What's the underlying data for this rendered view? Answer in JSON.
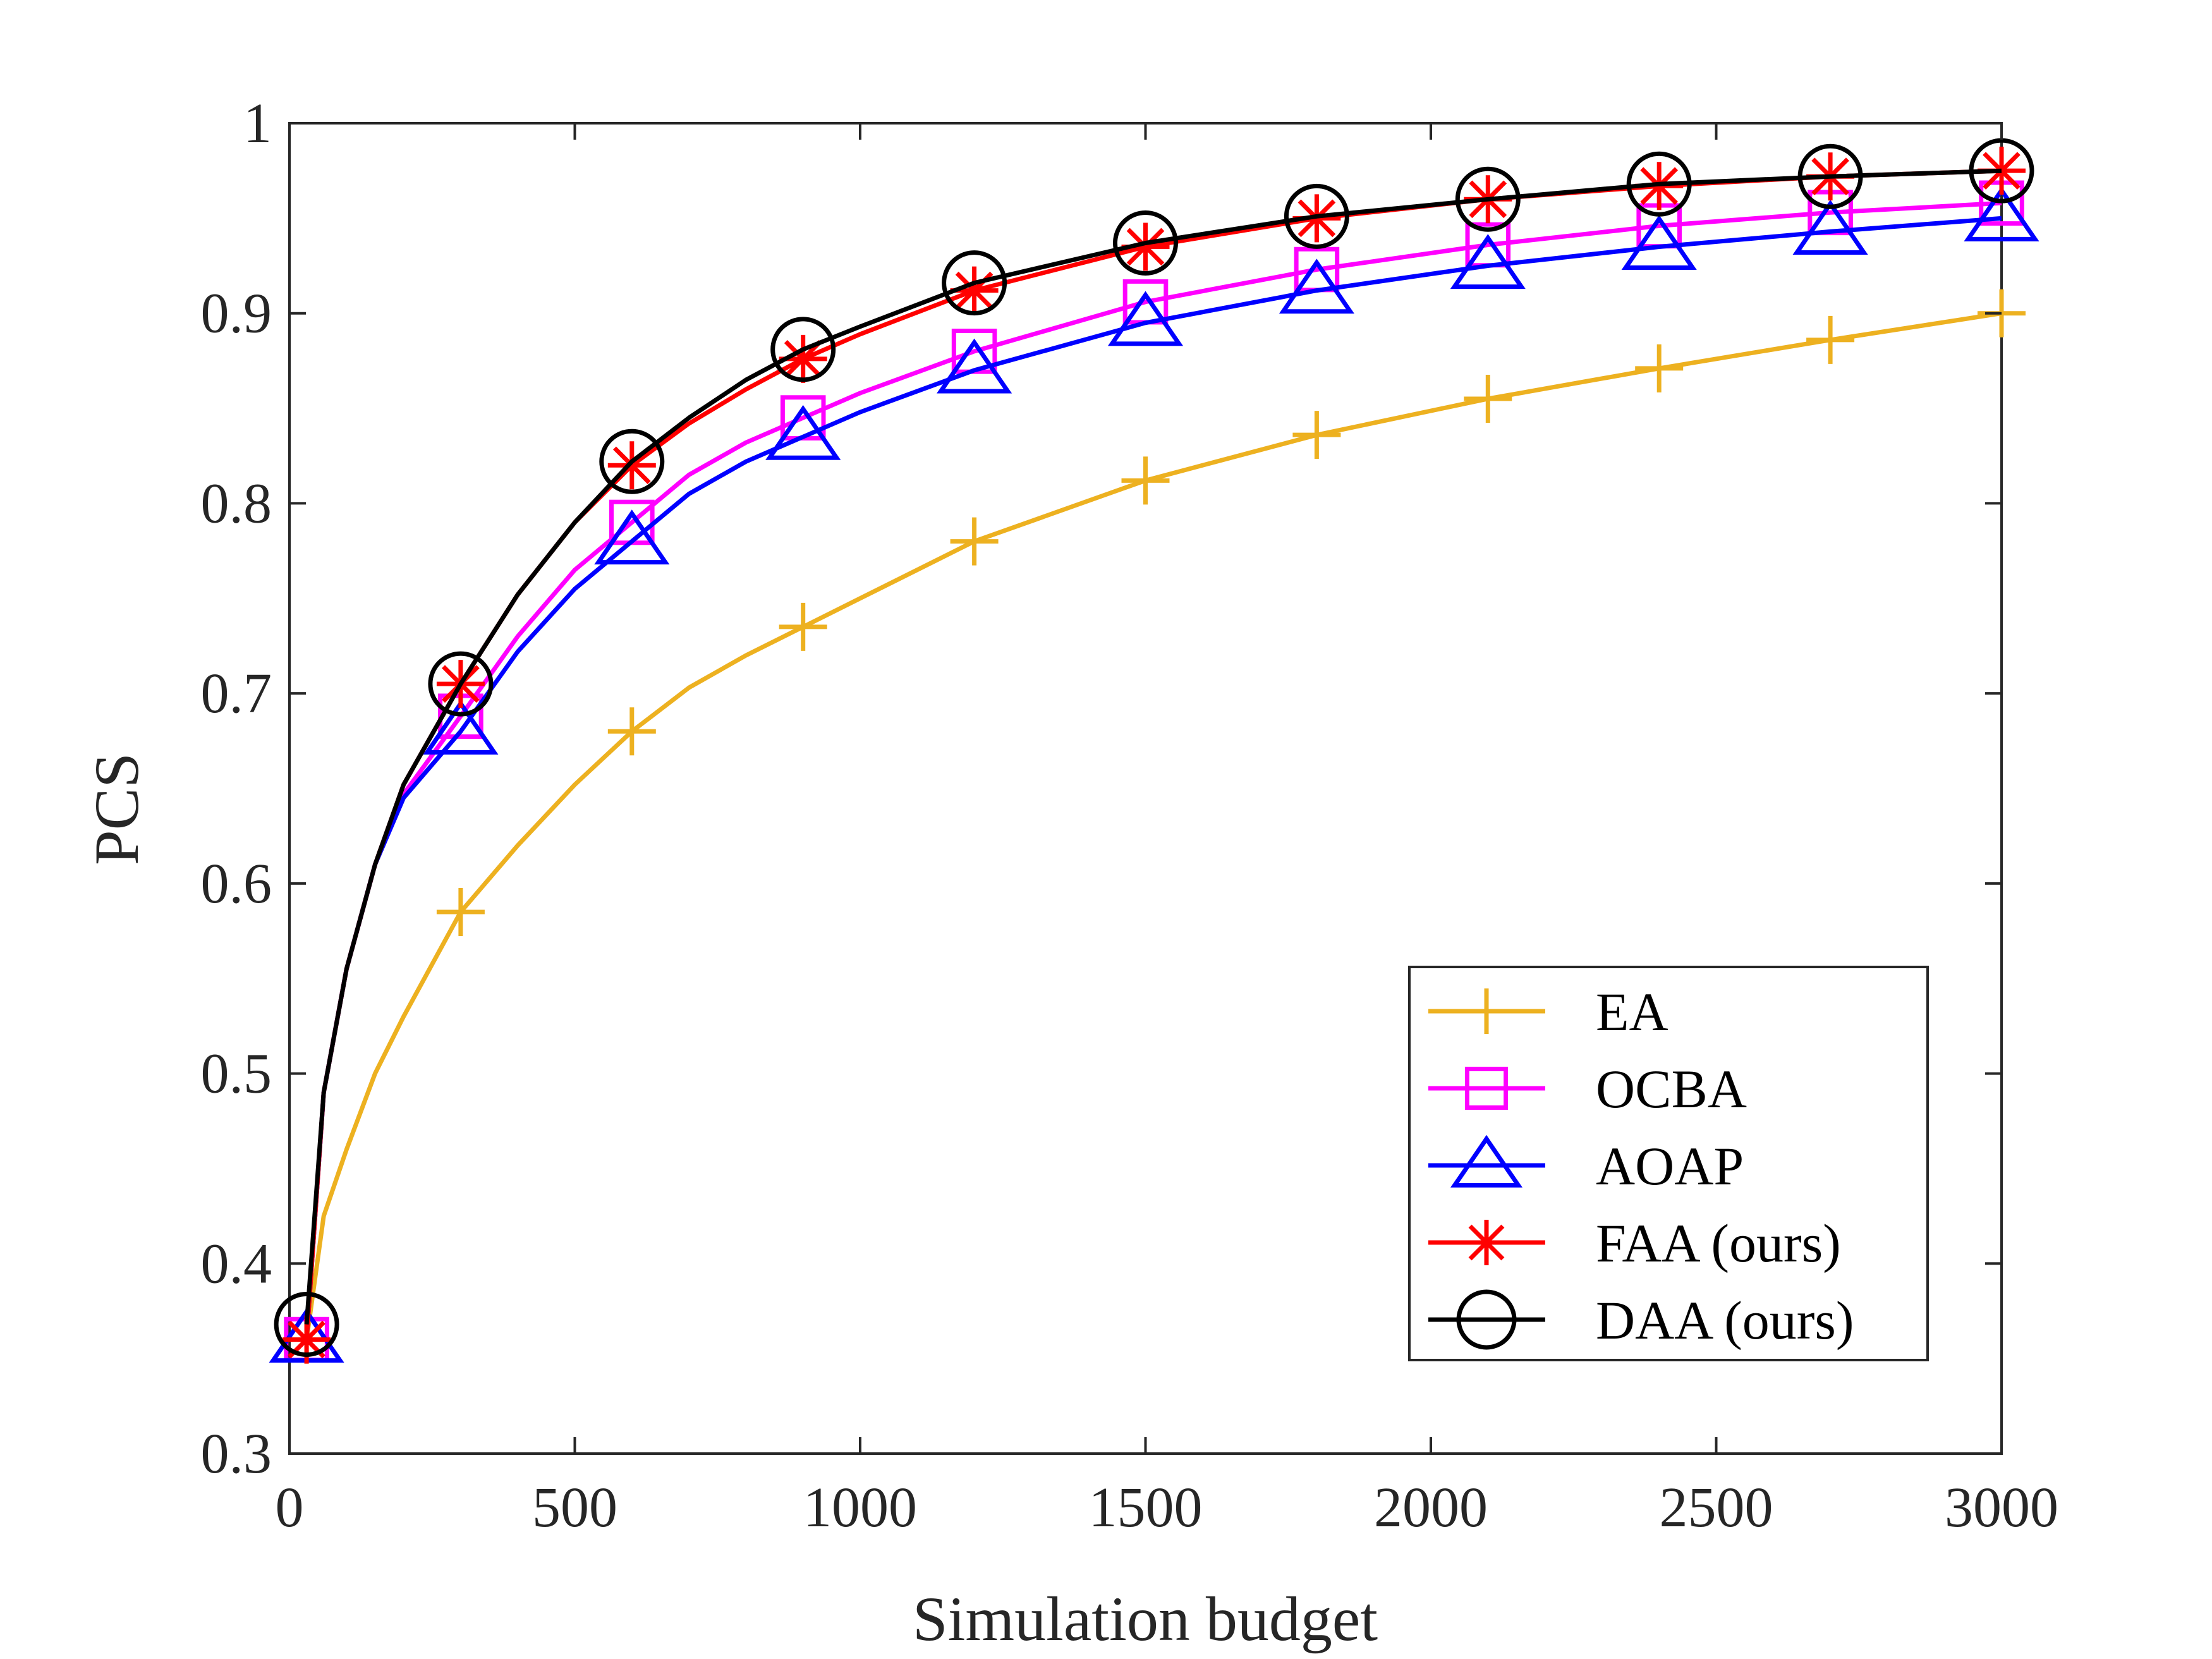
{
  "chart_data": {
    "type": "line",
    "title": "",
    "xlabel": "Simulation budget",
    "ylabel": "PCS",
    "xlim": [
      0,
      3000
    ],
    "ylim": [
      0.3,
      1
    ],
    "xticks": [
      0,
      500,
      1000,
      1500,
      2000,
      2500,
      3000
    ],
    "xtick_labels": [
      "0",
      "500",
      "1000",
      "1500",
      "2000",
      "2500",
      "3000"
    ],
    "yticks": [
      0.3,
      0.4,
      0.5,
      0.6,
      0.7,
      0.8,
      0.9,
      1
    ],
    "ytick_labels": [
      "0.3",
      "0.4",
      "0.5",
      "0.6",
      "0.7",
      "0.8",
      "0.9",
      "1"
    ],
    "grid": false,
    "legend_position": "bottom-right",
    "series": [
      {
        "name": "EA",
        "color": "#EDB120",
        "marker": "plus",
        "x": [
          30,
          60,
          100,
          150,
          200,
          300,
          400,
          500,
          600,
          700,
          800,
          900,
          1000,
          1200,
          1500,
          1800,
          2100,
          2400,
          2700,
          3000
        ],
        "y": [
          0.36,
          0.425,
          0.46,
          0.5,
          0.53,
          0.585,
          0.62,
          0.652,
          0.68,
          0.703,
          0.72,
          0.735,
          0.75,
          0.78,
          0.812,
          0.836,
          0.855,
          0.871,
          0.886,
          0.9
        ],
        "marker_x": [
          30,
          300,
          600,
          900,
          1200,
          1500,
          1800,
          2100,
          2400,
          2700,
          3000
        ],
        "marker_y": [
          0.36,
          0.585,
          0.68,
          0.735,
          0.78,
          0.812,
          0.836,
          0.855,
          0.871,
          0.886,
          0.9
        ]
      },
      {
        "name": "OCBA",
        "color": "#FF00FF",
        "marker": "square",
        "x": [
          30,
          60,
          100,
          150,
          200,
          300,
          400,
          500,
          600,
          700,
          800,
          900,
          1000,
          1200,
          1500,
          1800,
          2100,
          2400,
          2700,
          3000
        ],
        "y": [
          0.36,
          0.49,
          0.555,
          0.61,
          0.647,
          0.688,
          0.73,
          0.765,
          0.79,
          0.815,
          0.832,
          0.845,
          0.858,
          0.88,
          0.906,
          0.923,
          0.936,
          0.946,
          0.953,
          0.958
        ],
        "marker_x": [
          30,
          300,
          600,
          900,
          1200,
          1500,
          1800,
          2100,
          2400,
          2700,
          3000
        ],
        "marker_y": [
          0.36,
          0.688,
          0.79,
          0.845,
          0.88,
          0.906,
          0.923,
          0.936,
          0.946,
          0.953,
          0.958
        ]
      },
      {
        "name": "AOAP",
        "color": "#0000FF",
        "marker": "triangle",
        "x": [
          30,
          60,
          100,
          150,
          200,
          300,
          400,
          500,
          600,
          700,
          800,
          900,
          1000,
          1200,
          1500,
          1800,
          2100,
          2400,
          2700,
          3000
        ],
        "y": [
          0.36,
          0.49,
          0.555,
          0.61,
          0.645,
          0.68,
          0.722,
          0.755,
          0.78,
          0.805,
          0.822,
          0.835,
          0.848,
          0.87,
          0.895,
          0.912,
          0.925,
          0.935,
          0.943,
          0.95
        ],
        "marker_x": [
          30,
          300,
          600,
          900,
          1200,
          1500,
          1800,
          2100,
          2400,
          2700,
          3000
        ],
        "marker_y": [
          0.36,
          0.68,
          0.78,
          0.835,
          0.87,
          0.895,
          0.912,
          0.925,
          0.935,
          0.943,
          0.95
        ]
      },
      {
        "name": "FAA (ours)",
        "color": "#FF0000",
        "marker": "asterisk",
        "x": [
          30,
          60,
          100,
          150,
          200,
          300,
          400,
          500,
          600,
          700,
          800,
          900,
          1000,
          1200,
          1500,
          1800,
          2100,
          2400,
          2700,
          3000
        ],
        "y": [
          0.36,
          0.49,
          0.555,
          0.61,
          0.652,
          0.705,
          0.752,
          0.79,
          0.82,
          0.842,
          0.86,
          0.876,
          0.889,
          0.912,
          0.935,
          0.95,
          0.96,
          0.967,
          0.972,
          0.975
        ],
        "marker_x": [
          30,
          300,
          600,
          900,
          1200,
          1500,
          1800,
          2100,
          2400,
          2700,
          3000
        ],
        "marker_y": [
          0.36,
          0.705,
          0.82,
          0.876,
          0.912,
          0.935,
          0.95,
          0.96,
          0.967,
          0.972,
          0.975
        ]
      },
      {
        "name": "DAA (ours)",
        "color": "#000000",
        "marker": "circle",
        "x": [
          30,
          60,
          100,
          150,
          200,
          300,
          400,
          500,
          600,
          700,
          800,
          900,
          1000,
          1200,
          1500,
          1800,
          2100,
          2400,
          2700,
          3000
        ],
        "y": [
          0.368,
          0.49,
          0.555,
          0.61,
          0.652,
          0.705,
          0.752,
          0.79,
          0.822,
          0.845,
          0.865,
          0.881,
          0.893,
          0.916,
          0.937,
          0.951,
          0.96,
          0.968,
          0.972,
          0.975
        ],
        "marker_x": [
          30,
          300,
          600,
          900,
          1200,
          1500,
          1800,
          2100,
          2400,
          2700,
          3000
        ],
        "marker_y": [
          0.368,
          0.705,
          0.822,
          0.881,
          0.916,
          0.937,
          0.951,
          0.96,
          0.968,
          0.972,
          0.975
        ]
      }
    ]
  }
}
